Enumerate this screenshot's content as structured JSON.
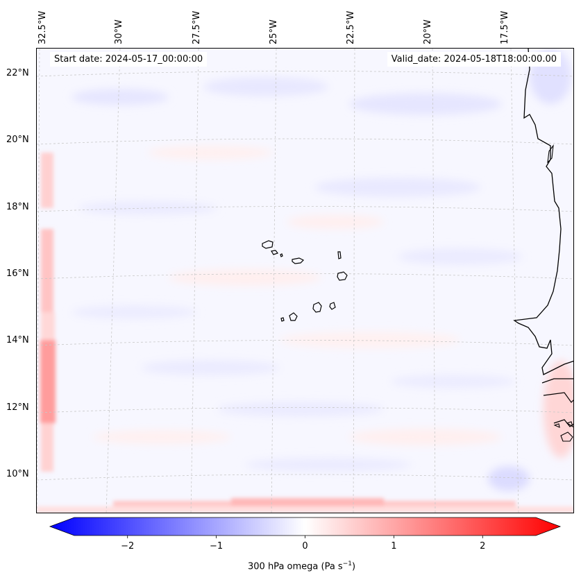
{
  "map": {
    "start_date_text": "Start date: 2024-05-17_00:00:00",
    "valid_date_text": "Valid_date: 2024-05-18T18:00:00.00",
    "lon_labels": [
      "32.5°W",
      "30°W",
      "27.5°W",
      "25°W",
      "22.5°W",
      "20°W",
      "17.5°W"
    ],
    "lat_labels": [
      "22°N",
      "20°N",
      "18°N",
      "16°N",
      "14°N",
      "12°N",
      "10°N"
    ],
    "coastline_color": "#000000",
    "gridline_color": "#c8c8c8"
  },
  "colorbar": {
    "label": "300 hPa omega (Pa s",
    "label_sup": "−1",
    "label_close": ")",
    "tick_labels": [
      "−2",
      "−1",
      "0",
      "1",
      "2"
    ],
    "tick_values": [
      -2,
      -1,
      0,
      1,
      2
    ],
    "range": [
      -2.6,
      2.6
    ],
    "extend": "both",
    "colormap": "bwr",
    "color_min": "#0000ff",
    "color_mid": "#ffffff",
    "color_max": "#ff0000"
  }
}
